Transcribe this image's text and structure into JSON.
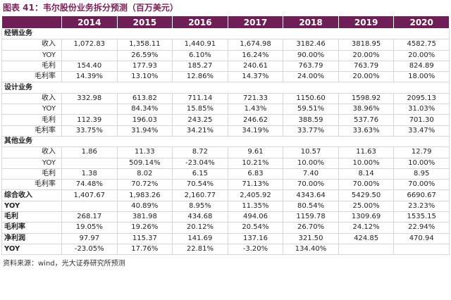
{
  "title": "图表 41：韦尔股份业务拆分预测（百万美元）",
  "table": {
    "years": [
      "2014",
      "2015",
      "2016",
      "2017",
      "2018",
      "2019",
      "2020"
    ],
    "groups": [
      {
        "title": "经销业务",
        "rows": [
          {
            "label": "收入",
            "values": [
              "1,072.83",
              "1,358.11",
              "1,440.91",
              "1,674.98",
              "3182.46",
              "3818.95",
              "4582.75"
            ]
          },
          {
            "label": "YOY",
            "values": [
              null,
              "26.59%",
              "6.10%",
              "16.24%",
              "90.00%",
              "20.00%",
              "20.00%"
            ]
          },
          {
            "label": "毛利",
            "values": [
              "154.40",
              "177.93",
              "185.27",
              "240.61",
              "763.79",
              "763.79",
              "824.89"
            ]
          },
          {
            "label": "毛利率",
            "values": [
              "14.39%",
              "13.10%",
              "12.86%",
              "14.37%",
              "24.00%",
              "20.00%",
              "18.00%"
            ]
          }
        ]
      },
      {
        "title": "设计业务",
        "rows": [
          {
            "label": "收入",
            "values": [
              "332.98",
              "613.82",
              "711.14",
              "721.33",
              "1150.60",
              "1598.92",
              "2095.13"
            ]
          },
          {
            "label": "YOY",
            "values": [
              null,
              "84.34%",
              "15.85%",
              "1.43%",
              "59.51%",
              "38.96%",
              "31.03%"
            ]
          },
          {
            "label": "毛利",
            "values": [
              "112.39",
              "196.03",
              "243.25",
              "246.62",
              "388.59",
              "537.76",
              "701.30"
            ]
          },
          {
            "label": "毛利率",
            "values": [
              "33.75%",
              "31.94%",
              "34.21%",
              "34.19%",
              "33.77%",
              "33.63%",
              "33.47%"
            ]
          }
        ]
      },
      {
        "title": "其他业务",
        "rows": [
          {
            "label": "收入",
            "values": [
              "1.86",
              "11.33",
              "8.72",
              "9.61",
              "10.57",
              "11.63",
              "12.79"
            ]
          },
          {
            "label": "YOY",
            "values": [
              null,
              "509.14%",
              "-23.04%",
              "10.21%",
              "10.00%",
              "10.00%",
              "10.00%"
            ]
          },
          {
            "label": "毛利",
            "values": [
              "1.38",
              "8.02",
              "6.15",
              "6.83",
              "7.40",
              "8.14",
              "8.95"
            ]
          },
          {
            "label": "毛利率",
            "values": [
              "74.48%",
              "70.72%",
              "70.54%",
              "71.13%",
              "70.00%",
              "70.00%",
              "70.00%"
            ]
          }
        ]
      }
    ],
    "summary_rows": [
      {
        "label": "综合收入",
        "values": [
          "1,407.67",
          "1,983.26",
          "2,160.77",
          "2,405.92",
          "4343.64",
          "5429.50",
          "6690.67"
        ]
      },
      {
        "label": "YOY",
        "values": [
          null,
          "40.89%",
          "8.95%",
          "11.35%",
          "80.54%",
          "25.00%",
          "23.23%"
        ]
      },
      {
        "label": "毛利",
        "values": [
          "268.17",
          "381.98",
          "434.68",
          "494.06",
          "1159.78",
          "1309.69",
          "1535.15"
        ]
      },
      {
        "label": "毛利率",
        "values": [
          "19.05%",
          "19.26%",
          "20.12%",
          "20.54%",
          "26.70%",
          "24.12%",
          "22.94%"
        ]
      },
      {
        "label": "净利润",
        "values": [
          "97.97",
          "115.37",
          "141.69",
          "137.16",
          "321.50",
          "424.85",
          "470.94"
        ]
      },
      {
        "label": "YOY",
        "values": [
          "-23.05%",
          "17.76%",
          "22.81%",
          "-3.20%",
          "134.40%",
          null,
          null
        ]
      }
    ]
  },
  "source": "资料来源：wind，光大证券研究所预测"
}
